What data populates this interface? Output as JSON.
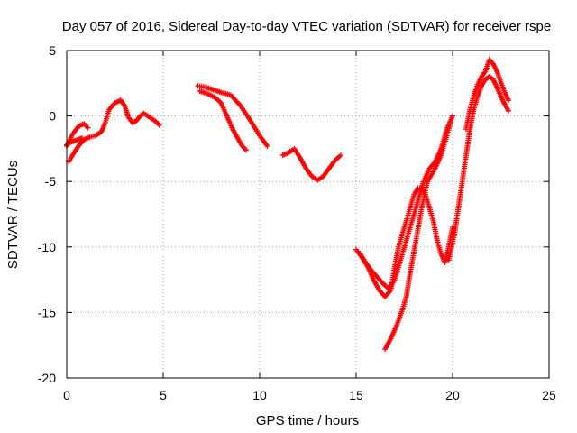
{
  "chart_data": {
    "type": "scatter",
    "title": "Day 057 of 2016, Sidereal Day-to-day VTEC variation (SDTVAR) for receiver rspe",
    "xlabel": "GPS time / hours",
    "ylabel": "SDTVAR / TECUs",
    "xlim": [
      0,
      25
    ],
    "ylim": [
      -20,
      5
    ],
    "xticks": [
      0,
      5,
      10,
      15,
      20,
      25
    ],
    "yticks": [
      -20,
      -15,
      -10,
      -5,
      0,
      5
    ],
    "grid": true,
    "marker": "plus",
    "marker_color": "#ff0000",
    "series": [
      {
        "x": [
          0.0,
          0.3,
          0.6,
          0.9,
          1.1
        ],
        "y": [
          -2.3,
          -1.4,
          -0.8,
          -0.6,
          -0.9
        ]
      },
      {
        "x": [
          0.1,
          0.3,
          0.6,
          0.9,
          1.2,
          1.5,
          1.8,
          2.0,
          2.2,
          2.5,
          2.8,
          3.0,
          3.2,
          3.4,
          3.6,
          3.8,
          4.0,
          4.3,
          4.6,
          4.8
        ],
        "y": [
          -3.5,
          -3.0,
          -2.3,
          -1.8,
          -1.6,
          -1.5,
          -1.2,
          -0.5,
          0.5,
          1.0,
          1.2,
          0.8,
          -0.1,
          -0.5,
          -0.4,
          0.0,
          0.2,
          -0.1,
          -0.4,
          -0.7
        ]
      },
      {
        "x": [
          0.0,
          0.2,
          0.4,
          0.6,
          0.8
        ],
        "y": [
          -2.2,
          -2.0,
          -1.9,
          -1.8,
          -1.7
        ]
      },
      {
        "x": [
          6.8,
          7.2,
          7.6,
          8.0,
          8.5,
          9.0,
          9.5,
          10.0,
          10.4
        ],
        "y": [
          2.3,
          2.2,
          2.0,
          1.8,
          1.6,
          0.8,
          -0.3,
          -1.5,
          -2.3
        ]
      },
      {
        "x": [
          6.9,
          7.3,
          7.7,
          8.0,
          8.3,
          8.6,
          8.9,
          9.1,
          9.3
        ],
        "y": [
          1.9,
          1.7,
          1.4,
          1.0,
          0.0,
          -1.0,
          -1.8,
          -2.3,
          -2.6
        ]
      },
      {
        "x": [
          11.2,
          11.5,
          11.8,
          12.1,
          12.4,
          12.7,
          13.0,
          13.3,
          13.6,
          13.9,
          14.2
        ],
        "y": [
          -3.0,
          -2.8,
          -2.5,
          -3.2,
          -4.0,
          -4.6,
          -4.9,
          -4.6,
          -4.0,
          -3.4,
          -3.0
        ]
      },
      {
        "x": [
          15.0,
          15.3,
          15.6,
          15.9,
          16.2,
          16.5,
          16.8,
          17.0,
          17.2,
          17.4,
          17.6,
          17.8,
          18.0,
          18.2,
          18.4,
          18.6,
          18.8,
          19.0,
          19.2,
          19.4,
          19.6,
          19.8,
          20.0
        ],
        "y": [
          -10.2,
          -10.8,
          -11.5,
          -12.5,
          -13.3,
          -13.8,
          -13.3,
          -11.5,
          -10.0,
          -9.0,
          -8.0,
          -7.0,
          -6.0,
          -5.5,
          -5.5,
          -6.0,
          -7.0,
          -8.0,
          -9.5,
          -10.5,
          -11.2,
          -10.0,
          -8.5
        ]
      },
      {
        "x": [
          15.2,
          15.5,
          15.8,
          16.1,
          16.4,
          16.7,
          17.0,
          17.3,
          17.6,
          17.9,
          18.2,
          18.5,
          18.8,
          19.1,
          19.4,
          19.7,
          20.0
        ],
        "y": [
          -10.5,
          -11.2,
          -11.8,
          -12.3,
          -12.8,
          -13.2,
          -12.5,
          -11.0,
          -9.5,
          -8.0,
          -6.5,
          -5.0,
          -4.0,
          -3.5,
          -2.5,
          -1.0,
          0.0
        ]
      },
      {
        "x": [
          16.5,
          16.8,
          17.1,
          17.4,
          17.6,
          17.8,
          18.1,
          18.4,
          18.7,
          18.9,
          19.1,
          19.4,
          19.7,
          19.9
        ],
        "y": [
          -17.8,
          -17.0,
          -16.0,
          -14.8,
          -13.8,
          -12.0,
          -9.5,
          -7.0,
          -5.0,
          -4.5,
          -4.0,
          -3.0,
          -1.5,
          -0.5
        ]
      },
      {
        "x": [
          19.8,
          20.1,
          20.3,
          20.5,
          20.7,
          20.9,
          21.1,
          21.3,
          21.5,
          21.7,
          21.9,
          22.1,
          22.3,
          22.5,
          22.7,
          22.9
        ],
        "y": [
          -11.0,
          -9.0,
          -7.0,
          -5.0,
          -3.0,
          -1.0,
          0.5,
          1.5,
          2.3,
          2.8,
          3.0,
          2.8,
          2.2,
          1.5,
          0.9,
          0.4
        ]
      },
      {
        "x": [
          20.7,
          20.9,
          21.1,
          21.3,
          21.5,
          21.7,
          21.9,
          22.1,
          22.3,
          22.5,
          22.7,
          22.9
        ],
        "y": [
          -1.0,
          0.5,
          1.6,
          2.4,
          3.0,
          3.4,
          4.3,
          4.0,
          3.4,
          2.6,
          1.8,
          1.2
        ]
      }
    ]
  }
}
